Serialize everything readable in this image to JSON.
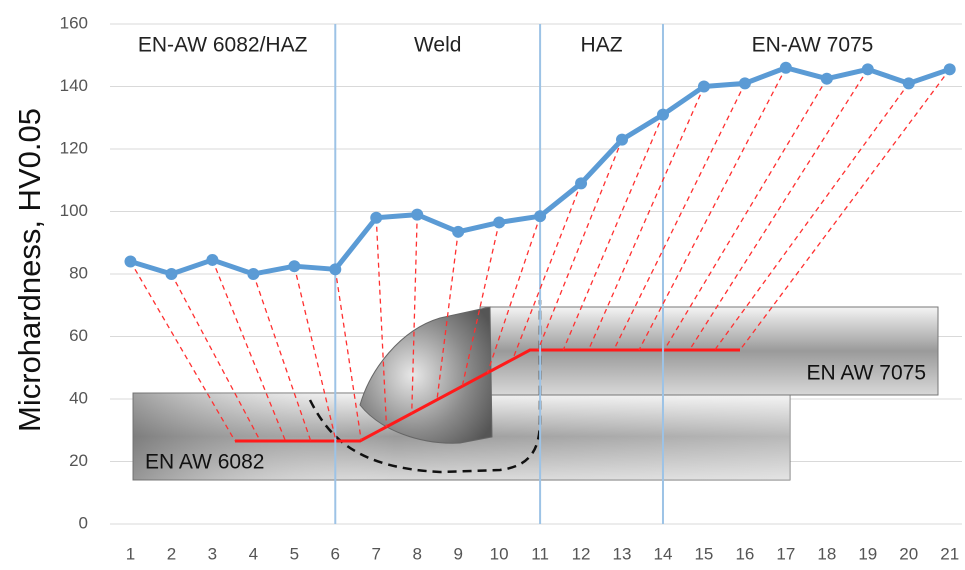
{
  "chart_data": {
    "type": "line",
    "y_label": "Microhardness, HV0.05",
    "x": [
      1,
      2,
      3,
      4,
      5,
      6,
      7,
      8,
      9,
      10,
      11,
      12,
      13,
      14,
      15,
      16,
      17,
      18,
      19,
      20,
      21
    ],
    "series": [
      {
        "name": "Microhardness",
        "color": "#5b9bd5",
        "values": [
          84,
          80,
          84.5,
          80,
          82.5,
          81.5,
          98,
          99,
          93.5,
          96.5,
          98.5,
          109,
          123,
          131,
          140,
          141,
          146,
          142.5,
          145.5,
          141,
          145.5
        ]
      }
    ],
    "xlim": [
      0.5,
      21.3
    ],
    "xticks": [
      1,
      2,
      3,
      4,
      5,
      6,
      7,
      8,
      9,
      10,
      11,
      12,
      13,
      14,
      15,
      16,
      17,
      18,
      19,
      20,
      21
    ],
    "ylim": [
      0,
      160
    ],
    "yticks": [
      0,
      20,
      40,
      60,
      80,
      100,
      120,
      140,
      160
    ],
    "grid": true,
    "zone_boundaries": [
      6,
      11,
      14
    ],
    "zones": [
      "EN-AW 6082/HAZ",
      "Weld",
      "HAZ",
      "EN-AW 7075"
    ],
    "plate_labels": [
      "EN AW 6082",
      "EN AW 7075"
    ]
  }
}
